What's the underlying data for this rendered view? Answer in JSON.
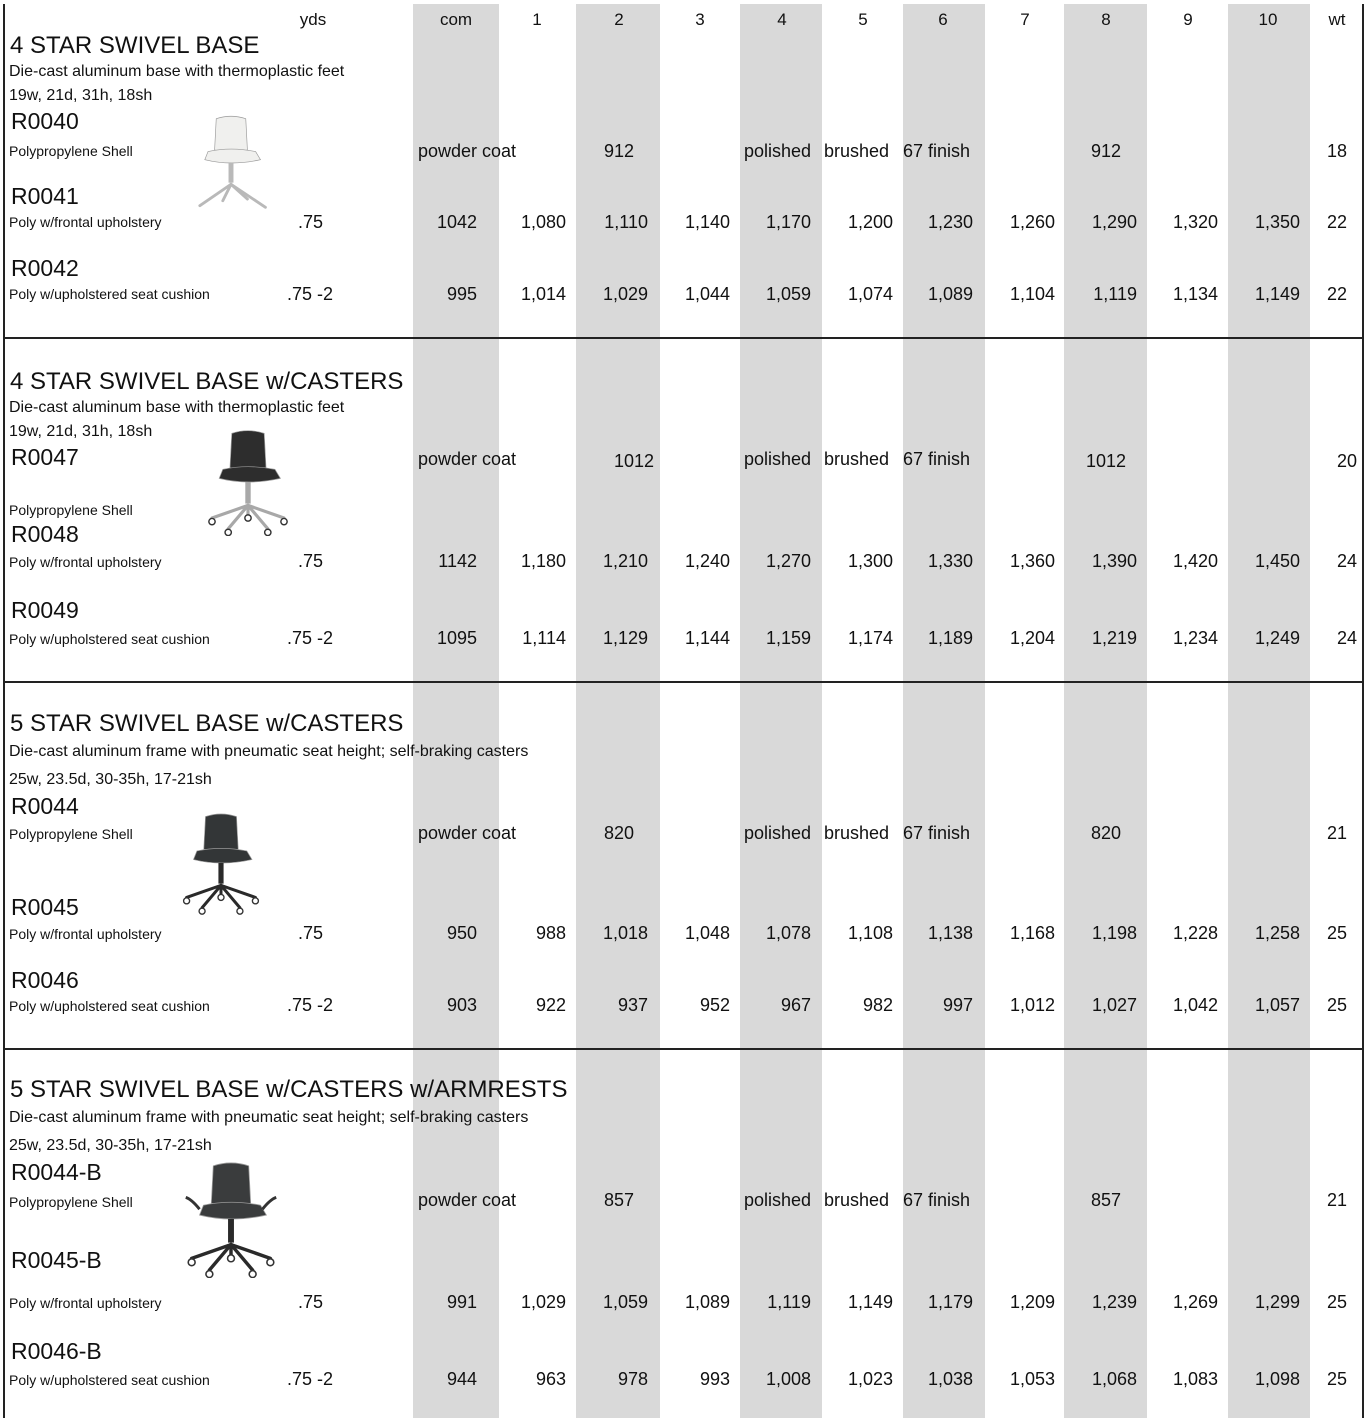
{
  "columns": [
    "yds",
    "com",
    "1",
    "2",
    "3",
    "4",
    "5",
    "6",
    "7",
    "8",
    "9",
    "10",
    "wt"
  ],
  "sections": [
    {
      "title": "4 STAR SWIVEL BASE",
      "desc": "Die-cast aluminum base with thermoplastic feet",
      "dims": "19w, 21d, 31h, 18sh",
      "finish": {
        "powder": "powder coat",
        "powder_price": "912",
        "polished": "polished",
        "brushed": "brushed",
        "finish67": "67 finish",
        "finish67_price": "912",
        "wt": "18"
      },
      "products": [
        {
          "model": "R0040",
          "name": "Polypropylene Shell"
        },
        {
          "model": "R0041",
          "name": "Poly w/frontal upholstery",
          "yds": ".75",
          "prices": [
            "1042",
            "1,080",
            "1,110",
            "1,140",
            "1,170",
            "1,200",
            "1,230",
            "1,260",
            "1,290",
            "1,320",
            "1,350"
          ],
          "wt": "22"
        },
        {
          "model": "R0042",
          "name": "Poly w/upholstered seat cushion",
          "yds": ".75 -2",
          "prices": [
            "995",
            "1,014",
            "1,029",
            "1,044",
            "1,059",
            "1,074",
            "1,089",
            "1,104",
            "1,119",
            "1,134",
            "1,149"
          ],
          "wt": "22"
        }
      ]
    },
    {
      "title": "4 STAR SWIVEL BASE w/CASTERS",
      "desc": "Die-cast aluminum base with thermoplastic feet",
      "dims": "19w, 21d, 31h, 18sh",
      "finish": {
        "powder": "powder coat",
        "powder_price": "1012",
        "polished": "polished",
        "brushed": "brushed",
        "finish67": "67 finish",
        "finish67_price": "1012",
        "wt": "20"
      },
      "products": [
        {
          "model": "R0047",
          "name": "Polypropylene Shell"
        },
        {
          "model": "R0048",
          "name": "Poly w/frontal upholstery",
          "yds": ".75",
          "prices": [
            "1142",
            "1,180",
            "1,210",
            "1,240",
            "1,270",
            "1,300",
            "1,330",
            "1,360",
            "1,390",
            "1,420",
            "1,450"
          ],
          "wt": "24"
        },
        {
          "model": "R0049",
          "name": "Poly w/upholstered seat cushion",
          "yds": ".75 -2",
          "prices": [
            "1095",
            "1,114",
            "1,129",
            "1,144",
            "1,159",
            "1,174",
            "1,189",
            "1,204",
            "1,219",
            "1,234",
            "1,249"
          ],
          "wt": "24"
        }
      ]
    },
    {
      "title": "5 STAR SWIVEL BASE w/CASTERS",
      "desc": "Die-cast aluminum frame with pneumatic seat height; self-braking casters",
      "dims": "25w, 23.5d, 30-35h, 17-21sh",
      "finish": {
        "powder": "powder coat",
        "powder_price": "820",
        "polished": "polished",
        "brushed": "brushed",
        "finish67": "67 finish",
        "finish67_price": "820",
        "wt": "21"
      },
      "products": [
        {
          "model": "R0044",
          "name": "Polypropylene Shell"
        },
        {
          "model": "R0045",
          "name": "Poly w/frontal upholstery",
          "yds": ".75",
          "prices": [
            "950",
            "988",
            "1,018",
            "1,048",
            "1,078",
            "1,108",
            "1,138",
            "1,168",
            "1,198",
            "1,228",
            "1,258"
          ],
          "wt": "25"
        },
        {
          "model": "R0046",
          "name": "Poly w/upholstered seat cushion",
          "yds": ".75 -2",
          "prices": [
            "903",
            "922",
            "937",
            "952",
            "967",
            "982",
            "997",
            "1,012",
            "1,027",
            "1,042",
            "1,057"
          ],
          "wt": "25"
        }
      ]
    },
    {
      "title": "5 STAR SWIVEL BASE w/CASTERS w/ARMRESTS",
      "desc": "Die-cast aluminum frame with pneumatic seat height; self-braking casters",
      "dims": "25w, 23.5d, 30-35h, 17-21sh",
      "finish": {
        "powder": "powder coat",
        "powder_price": "857",
        "polished": "polished",
        "brushed": "brushed",
        "finish67": "67 finish",
        "finish67_price": "857",
        "wt": "21"
      },
      "products": [
        {
          "model": "R0044-B",
          "name": "Polypropylene Shell"
        },
        {
          "model": "R0045-B",
          "name": "Poly w/frontal upholstery",
          "yds": ".75",
          "prices": [
            "991",
            "1,029",
            "1,059",
            "1,089",
            "1,119",
            "1,149",
            "1,179",
            "1,209",
            "1,239",
            "1,269",
            "1,299"
          ],
          "wt": "25"
        },
        {
          "model": "R0046-B",
          "name": "Poly w/upholstered seat cushion",
          "yds": ".75 -2",
          "prices": [
            "944",
            "963",
            "978",
            "993",
            "1,008",
            "1,023",
            "1,038",
            "1,053",
            "1,068",
            "1,083",
            "1,098"
          ],
          "wt": "25"
        }
      ]
    }
  ],
  "images": [
    {
      "name": "white-chair-4star-image",
      "shell": "#f0f0ee",
      "base": "#b9b9b9",
      "casters": false,
      "arms": false
    },
    {
      "name": "black-chair-4star-casters-image",
      "shell": "#2d2d2d",
      "base": "#a8a8a8",
      "casters": true,
      "arms": false
    },
    {
      "name": "black-chair-5star-casters-image",
      "shell": "#333637",
      "base": "#2a2a2a",
      "casters": true,
      "arms": false
    },
    {
      "name": "black-chair-5star-armrests-image",
      "shell": "#3a3c3d",
      "base": "#2a2a2a",
      "casters": true,
      "arms": true
    }
  ]
}
